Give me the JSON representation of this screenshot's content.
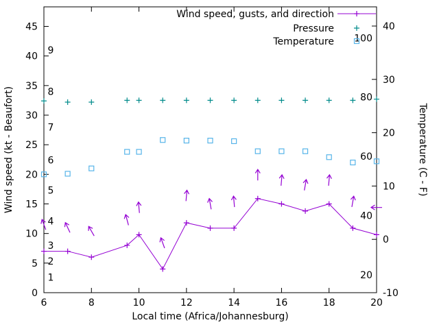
{
  "page": {
    "background": "#ffffff"
  },
  "chart_data": {
    "type": "line",
    "title": "",
    "xlabel": "Local time (Africa/Johannesburg)",
    "ylabel_left": "Wind speed (kt - Beaufort)",
    "ylabel_right": "Temperature (C - F)",
    "grid": false,
    "legend": {
      "position": "top-right",
      "entries": [
        {
          "label": "Wind speed, gusts, and direction",
          "marker": "line-plus",
          "color": "#9400d3"
        },
        {
          "label": "Pressure",
          "marker": "plus",
          "color": "#008b8b"
        },
        {
          "label": "Temperature",
          "marker": "open-square",
          "color": "#56b4e9"
        }
      ]
    },
    "axes": {
      "x": {
        "range": [
          6,
          20
        ],
        "ticks": [
          6,
          8,
          10,
          12,
          14,
          16,
          18,
          20
        ]
      },
      "y_left": {
        "range": [
          0,
          48.3
        ],
        "ticks": [
          0,
          5,
          10,
          15,
          20,
          25,
          30,
          35,
          40,
          45
        ]
      },
      "y_right": {
        "range": [
          -10,
          43.6
        ],
        "ticks": [
          -10,
          0,
          10,
          20,
          30,
          40
        ]
      },
      "beaufort_labels": [
        {
          "label": "1",
          "kt": 2.6
        },
        {
          "label": "2",
          "kt": 5.3
        },
        {
          "label": "3",
          "kt": 8
        },
        {
          "label": "4",
          "kt": 12.1
        },
        {
          "label": "5",
          "kt": 17.3
        },
        {
          "label": "6",
          "kt": 22.4
        },
        {
          "label": "7",
          "kt": 28
        },
        {
          "label": "8",
          "kt": 34
        },
        {
          "label": "9",
          "kt": 41
        }
      ],
      "fahrenheit_labels": [
        {
          "label": "20",
          "f": 20
        },
        {
          "label": "40",
          "f": 40
        },
        {
          "label": "60",
          "f": 60
        },
        {
          "label": "80",
          "f": 80
        },
        {
          "label": "100",
          "f": 100
        }
      ]
    },
    "x": [
      6,
      7,
      8,
      9.5,
      10,
      11,
      12,
      13,
      14,
      15,
      16,
      17,
      18,
      19,
      20
    ],
    "series": [
      {
        "name": "Wind speed",
        "axis": "left",
        "style": "line-plus",
        "color": "#9400d3",
        "values": [
          7,
          7,
          6,
          8,
          9.8,
          4,
          11.8,
          10.9,
          10.9,
          15.9,
          15,
          13.8,
          15,
          10.9,
          9.8
        ]
      },
      {
        "name": "Wind gusts and direction",
        "axis": "left",
        "style": "arrow",
        "color": "#9400d3",
        "values": [
          11.5,
          11,
          10.4,
          12.3,
          14.4,
          8.4,
          16.4,
          15,
          15.4,
          19.9,
          19,
          18.2,
          19,
          15.4,
          14.4
        ],
        "angles_deg": [
          -20,
          -25,
          -30,
          -15,
          -5,
          -20,
          5,
          -10,
          -5,
          0,
          5,
          10,
          5,
          10,
          -90
        ]
      },
      {
        "name": "Pressure",
        "axis": "left",
        "style": "plus",
        "color": "#008b8b",
        "values": [
          32.4,
          32.2,
          32.2,
          32.5,
          32.5,
          32.5,
          32.5,
          32.5,
          32.5,
          32.5,
          32.5,
          32.5,
          32.5,
          32.5,
          32.7
        ]
      },
      {
        "name": "Temperature",
        "axis": "left",
        "style": "open-square",
        "color": "#56b4e9",
        "values": [
          20,
          20.1,
          21,
          23.8,
          23.8,
          25.8,
          25.7,
          25.7,
          25.6,
          23.9,
          23.9,
          23.9,
          22.9,
          22,
          22.2
        ]
      }
    ]
  }
}
